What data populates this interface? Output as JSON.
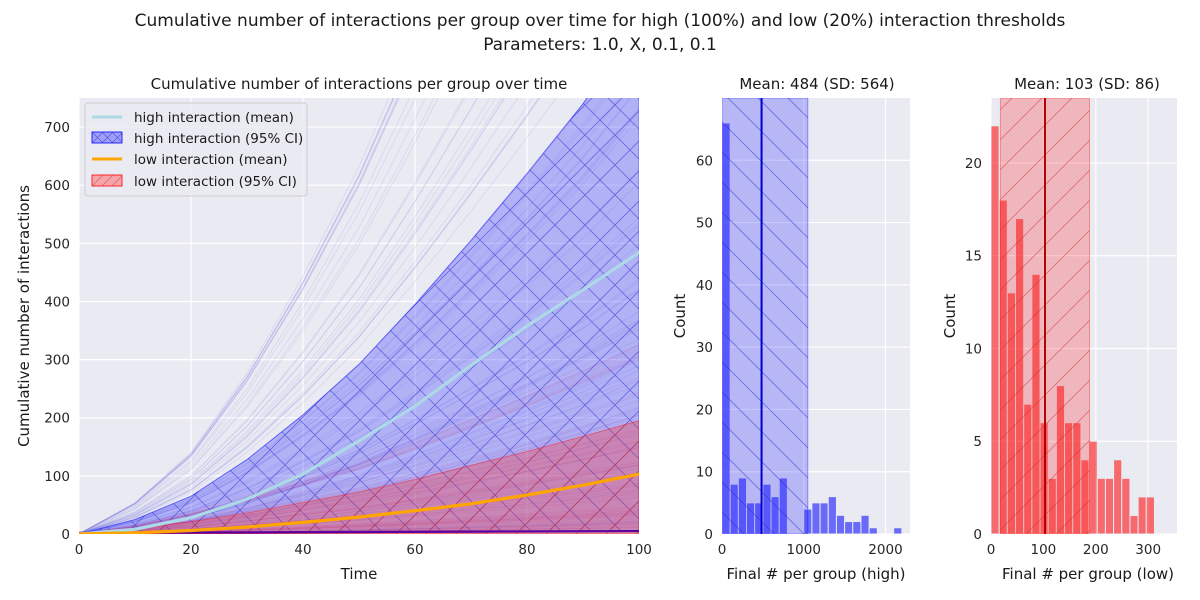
{
  "figure": {
    "suptitle_line1": "Cumulative number of interactions per group over time for high (100%) and low (20%) interaction thresholds",
    "suptitle_line2": "Parameters: 1.0, X, 0.1, 0.1"
  },
  "chart_data": [
    {
      "type": "line",
      "title": "Cumulative number of interactions per group over time",
      "xlabel": "Time",
      "ylabel": "Cumulative number of interactions",
      "xlim": [
        0,
        100
      ],
      "ylim": [
        0,
        750
      ],
      "xticks": [
        "0",
        "20",
        "40",
        "60",
        "80",
        "100"
      ],
      "yticks": [
        "0",
        "100",
        "200",
        "300",
        "400",
        "500",
        "600",
        "700"
      ],
      "grid": true,
      "legend_position": "top-left",
      "legend": [
        "high interaction (mean)",
        "high interaction (95% CI)",
        "low interaction (mean)",
        "low interaction (95% CI)"
      ],
      "series": [
        {
          "name": "high interaction (mean)",
          "color": "#add8e6",
          "x": [
            0,
            10,
            20,
            30,
            40,
            50,
            60,
            70,
            80,
            90,
            100
          ],
          "y": [
            0,
            8,
            28,
            60,
            103,
            160,
            220,
            290,
            358,
            420,
            484
          ]
        },
        {
          "name": "low interaction (mean)",
          "color": "#ffa500",
          "x": [
            0,
            10,
            20,
            30,
            40,
            50,
            60,
            70,
            80,
            90,
            100
          ],
          "y": [
            0,
            2,
            6,
            12,
            20,
            29,
            40,
            52,
            67,
            84,
            103
          ]
        }
      ],
      "bands": [
        {
          "name": "high interaction (95% CI)",
          "color": "#0000ff",
          "x": [
            0,
            10,
            20,
            30,
            40,
            50,
            60,
            70,
            80,
            90,
            100
          ],
          "lower": [
            0,
            0,
            1,
            1,
            2,
            2,
            3,
            3,
            4,
            4,
            5
          ],
          "upper": [
            0,
            25,
            65,
            128,
            205,
            292,
            395,
            505,
            620,
            740,
            880
          ]
        },
        {
          "name": "low interaction (95% CI)",
          "color": "#ff0000",
          "x": [
            0,
            10,
            20,
            30,
            40,
            50,
            60,
            70,
            80,
            90,
            100
          ],
          "lower": [
            0,
            0,
            0,
            0,
            0,
            0,
            0,
            0,
            0,
            0,
            0
          ],
          "upper": [
            0,
            8,
            21,
            36,
            54,
            72,
            94,
            118,
            142,
            168,
            195
          ]
        }
      ]
    },
    {
      "type": "bar",
      "title": "Mean: 484 (SD: 564)",
      "xlabel": "Final # per group (high)",
      "ylabel": "Count",
      "xlim": [
        0,
        2300
      ],
      "ylim": [
        0,
        70
      ],
      "xticks": [
        "0",
        "1000",
        "2000"
      ],
      "yticks": [
        "0",
        "10",
        "20",
        "30",
        "40",
        "50",
        "60"
      ],
      "bin_width": 100,
      "bin_starts": [
        0,
        100,
        200,
        300,
        400,
        500,
        600,
        700,
        800,
        900,
        1000,
        1100,
        1200,
        1300,
        1400,
        1500,
        1600,
        1700,
        1800,
        1900,
        2000,
        2100,
        2200
      ],
      "values": [
        66,
        8,
        9,
        5,
        5,
        8,
        6,
        9,
        0,
        0,
        4,
        5,
        5,
        6,
        3,
        2,
        2,
        3,
        1,
        0,
        0,
        1,
        0
      ],
      "mean": 484,
      "ci": [
        0,
        1050
      ],
      "color": "#0000ff"
    },
    {
      "type": "bar",
      "title": "Mean: 103 (SD: 86)",
      "xlabel": "Final # per group (low)",
      "ylabel": "Count",
      "xlim": [
        0,
        355
      ],
      "ylim": [
        0,
        23.5
      ],
      "xticks": [
        "0",
        "100",
        "200",
        "300"
      ],
      "yticks": [
        "0",
        "5",
        "10",
        "15",
        "20"
      ],
      "bin_width": 15.6,
      "bin_starts": [
        0,
        15.6,
        31.2,
        46.8,
        62.4,
        78,
        93.6,
        109.2,
        124.8,
        140.4,
        156,
        171.6,
        187.2,
        202.8,
        218.4,
        234,
        249.6,
        265.2,
        280.8,
        296.4,
        312,
        327.6
      ],
      "values": [
        22,
        18,
        13,
        17,
        7,
        14,
        6,
        3,
        8,
        6,
        6,
        4,
        5,
        3,
        3,
        4,
        3,
        1,
        2,
        2,
        0,
        0
      ],
      "mean": 103,
      "ci": [
        18,
        188
      ],
      "color": "#ff0000"
    }
  ]
}
